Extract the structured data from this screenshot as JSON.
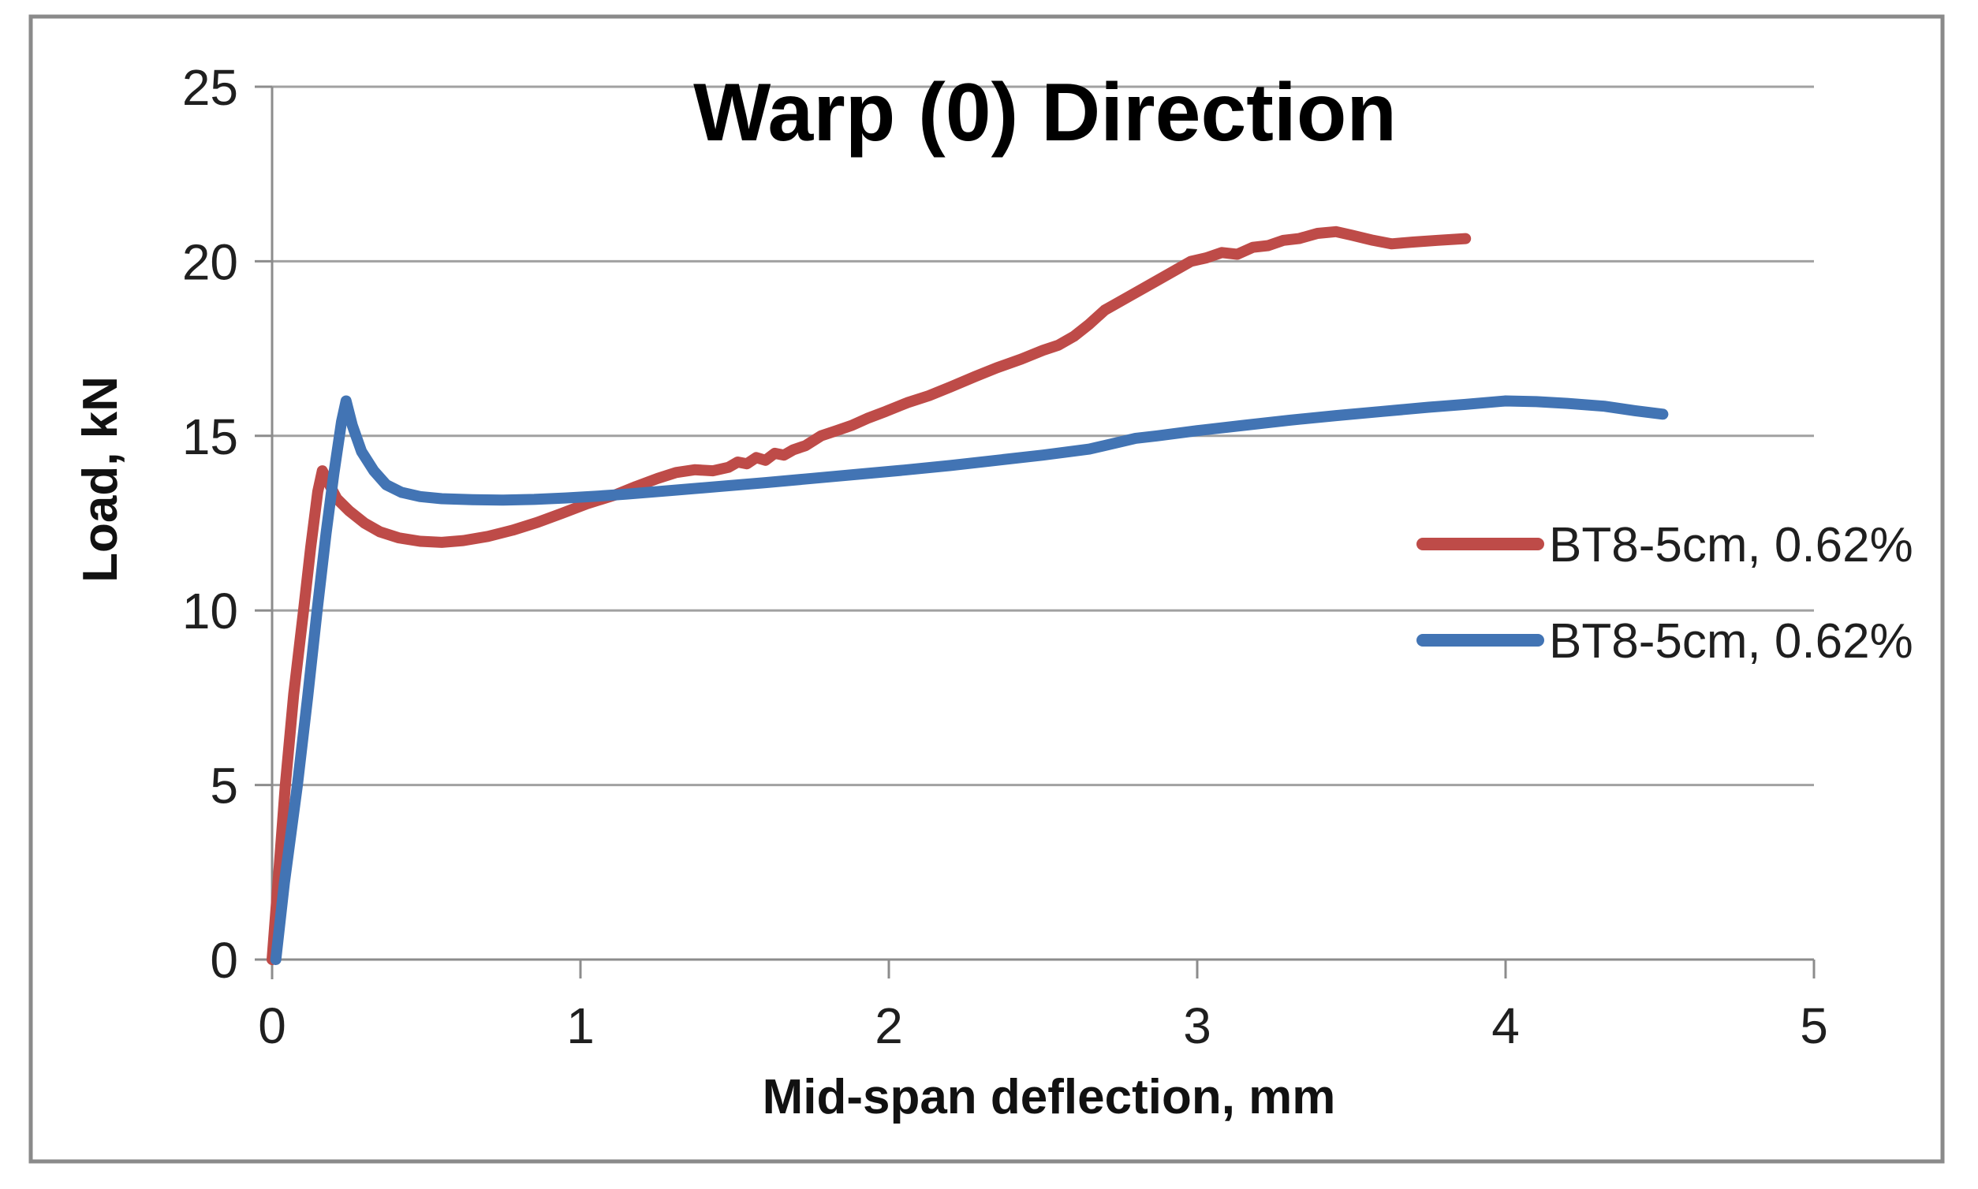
{
  "chart_data": {
    "type": "line",
    "title": "Warp (0) Direction",
    "xlabel": "Mid-span deflection, mm",
    "ylabel": "Load, kN",
    "xlim": [
      0,
      5
    ],
    "ylim": [
      0,
      25
    ],
    "x_ticks": [
      0,
      1,
      2,
      3,
      4,
      5
    ],
    "y_ticks": [
      0,
      5,
      10,
      15,
      20,
      25
    ],
    "grid": "horizontal",
    "legend_position": "middle-right",
    "colors": {
      "red_series": "#be4b48",
      "blue_series": "#4274b4",
      "gridline": "#a1a1a1",
      "axis": "#8c8c8c",
      "frame": "#8a8a8a",
      "text": "#1f1f1f"
    },
    "series": [
      {
        "name": "BT8-5cm, 0.62%",
        "color": "#be4b48",
        "points": [
          [
            0,
            0
          ],
          [
            0.02,
            2.3
          ],
          [
            0.043,
            5.0
          ],
          [
            0.07,
            7.6
          ],
          [
            0.102,
            10.0
          ],
          [
            0.125,
            11.8
          ],
          [
            0.148,
            13.4
          ],
          [
            0.163,
            14.0
          ],
          [
            0.18,
            13.7
          ],
          [
            0.21,
            13.2
          ],
          [
            0.25,
            12.85
          ],
          [
            0.3,
            12.5
          ],
          [
            0.35,
            12.25
          ],
          [
            0.41,
            12.08
          ],
          [
            0.48,
            11.98
          ],
          [
            0.55,
            11.95
          ],
          [
            0.62,
            12.0
          ],
          [
            0.7,
            12.12
          ],
          [
            0.78,
            12.3
          ],
          [
            0.86,
            12.52
          ],
          [
            0.94,
            12.78
          ],
          [
            1.02,
            13.05
          ],
          [
            1.11,
            13.3
          ],
          [
            1.18,
            13.55
          ],
          [
            1.25,
            13.78
          ],
          [
            1.31,
            13.95
          ],
          [
            1.37,
            14.03
          ],
          [
            1.43,
            14.0
          ],
          [
            1.48,
            14.1
          ],
          [
            1.51,
            14.25
          ],
          [
            1.54,
            14.2
          ],
          [
            1.57,
            14.38
          ],
          [
            1.6,
            14.3
          ],
          [
            1.63,
            14.5
          ],
          [
            1.66,
            14.45
          ],
          [
            1.69,
            14.6
          ],
          [
            1.73,
            14.72
          ],
          [
            1.78,
            15.0
          ],
          [
            1.83,
            15.15
          ],
          [
            1.88,
            15.3
          ],
          [
            1.93,
            15.5
          ],
          [
            1.99,
            15.7
          ],
          [
            2.06,
            15.95
          ],
          [
            2.13,
            16.15
          ],
          [
            2.2,
            16.4
          ],
          [
            2.28,
            16.7
          ],
          [
            2.35,
            16.95
          ],
          [
            2.43,
            17.2
          ],
          [
            2.5,
            17.45
          ],
          [
            2.55,
            17.6
          ],
          [
            2.6,
            17.85
          ],
          [
            2.65,
            18.2
          ],
          [
            2.7,
            18.6
          ],
          [
            2.78,
            19.0
          ],
          [
            2.86,
            19.4
          ],
          [
            2.93,
            19.75
          ],
          [
            2.98,
            20.0
          ],
          [
            3.03,
            20.1
          ],
          [
            3.08,
            20.25
          ],
          [
            3.13,
            20.2
          ],
          [
            3.18,
            20.4
          ],
          [
            3.23,
            20.45
          ],
          [
            3.28,
            20.6
          ],
          [
            3.33,
            20.65
          ],
          [
            3.39,
            20.8
          ],
          [
            3.45,
            20.85
          ],
          [
            3.5,
            20.75
          ],
          [
            3.57,
            20.6
          ],
          [
            3.63,
            20.5
          ],
          [
            3.7,
            20.55
          ],
          [
            3.78,
            20.6
          ],
          [
            3.87,
            20.65
          ]
        ]
      },
      {
        "name": "BT8-5cm, 0.62%",
        "color": "#4274b4",
        "points": [
          [
            0.012,
            0
          ],
          [
            0.04,
            2.2
          ],
          [
            0.082,
            5.0
          ],
          [
            0.115,
            7.5
          ],
          [
            0.146,
            10.0
          ],
          [
            0.175,
            12.2
          ],
          [
            0.2,
            13.9
          ],
          [
            0.225,
            15.4
          ],
          [
            0.24,
            16.0
          ],
          [
            0.26,
            15.3
          ],
          [
            0.29,
            14.55
          ],
          [
            0.33,
            14.0
          ],
          [
            0.37,
            13.6
          ],
          [
            0.42,
            13.38
          ],
          [
            0.48,
            13.26
          ],
          [
            0.55,
            13.2
          ],
          [
            0.65,
            13.17
          ],
          [
            0.75,
            13.16
          ],
          [
            0.85,
            13.18
          ],
          [
            0.95,
            13.22
          ],
          [
            1.05,
            13.27
          ],
          [
            1.15,
            13.33
          ],
          [
            1.3,
            13.44
          ],
          [
            1.45,
            13.55
          ],
          [
            1.6,
            13.66
          ],
          [
            1.75,
            13.78
          ],
          [
            1.9,
            13.9
          ],
          [
            2.05,
            14.02
          ],
          [
            2.2,
            14.15
          ],
          [
            2.35,
            14.3
          ],
          [
            2.5,
            14.45
          ],
          [
            2.65,
            14.62
          ],
          [
            2.8,
            14.93
          ],
          [
            2.87,
            15.0
          ],
          [
            3.0,
            15.15
          ],
          [
            3.15,
            15.3
          ],
          [
            3.3,
            15.45
          ],
          [
            3.45,
            15.58
          ],
          [
            3.6,
            15.7
          ],
          [
            3.75,
            15.82
          ],
          [
            3.87,
            15.9
          ],
          [
            4.0,
            16.0
          ],
          [
            4.1,
            15.98
          ],
          [
            4.2,
            15.93
          ],
          [
            4.32,
            15.85
          ],
          [
            4.42,
            15.72
          ],
          [
            4.51,
            15.62
          ]
        ]
      }
    ],
    "legend": {
      "entries": [
        "BT8-5cm, 0.62%",
        "BT8-5cm, 0.62%"
      ]
    }
  }
}
